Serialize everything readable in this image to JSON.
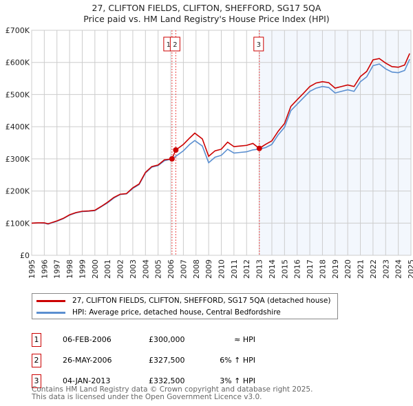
{
  "chart_data": {
    "type": "line",
    "title": "27, CLIFTON FIELDS, CLIFTON, SHEFFORD, SG17 5QA",
    "subtitle": "Price paid vs. HM Land Registry's House Price Index (HPI)",
    "xlim": [
      1995,
      2025
    ],
    "ylim": [
      0,
      700000
    ],
    "x_ticks": [
      "1995",
      "1996",
      "1997",
      "1998",
      "1999",
      "2000",
      "2001",
      "2002",
      "2003",
      "2004",
      "2005",
      "2006",
      "2007",
      "2008",
      "2009",
      "2010",
      "2011",
      "2012",
      "2013",
      "2014",
      "2015",
      "2016",
      "2017",
      "2018",
      "2019",
      "2020",
      "2021",
      "2022",
      "2023",
      "2024",
      "2025"
    ],
    "y_ticks": [
      {
        "v": 0,
        "label": "£0"
      },
      {
        "v": 100000,
        "label": "£100K"
      },
      {
        "v": 200000,
        "label": "£200K"
      },
      {
        "v": 300000,
        "label": "£300K"
      },
      {
        "v": 400000,
        "label": "£400K"
      },
      {
        "v": 500000,
        "label": "£500K"
      },
      {
        "v": 600000,
        "label": "£600K"
      },
      {
        "v": 700000,
        "label": "£700K"
      }
    ],
    "grid": true,
    "x": [
      1995,
      1995.5,
      1996,
      1996.3,
      1997,
      1997.5,
      1998,
      1998.5,
      1999,
      1999.5,
      2000,
      2000.5,
      2001,
      2001.5,
      2002,
      2002.5,
      2003,
      2003.5,
      2004,
      2004.5,
      2005,
      2005.5,
      2006.1,
      2006.4,
      2007,
      2007.5,
      2007.9,
      2008.5,
      2009,
      2009.5,
      2010,
      2010.5,
      2011,
      2011.5,
      2012,
      2012.5,
      2013,
      2013.5,
      2014,
      2014.5,
      2015,
      2015.5,
      2016,
      2016.5,
      2017,
      2017.5,
      2018,
      2018.5,
      2019,
      2019.5,
      2020,
      2020.5,
      2021,
      2021.5,
      2022,
      2022.5,
      2023,
      2023.5,
      2024,
      2024.5,
      2024.9
    ],
    "series": [
      {
        "name": "27, CLIFTON FIELDS, CLIFTON, SHEFFORD, SG17 5QA (detached house)",
        "color": "#cc0000",
        "values": [
          100000,
          101000,
          101000,
          98000,
          107000,
          115000,
          126000,
          133000,
          137000,
          138000,
          140000,
          152000,
          165000,
          180000,
          190000,
          192000,
          210000,
          222000,
          258000,
          276000,
          281000,
          297000,
          300000,
          327500,
          345000,
          365000,
          380000,
          362000,
          308000,
          325000,
          330000,
          352000,
          338000,
          340000,
          342000,
          348000,
          332500,
          345000,
          356000,
          386000,
          410000,
          463000,
          484000,
          504000,
          525000,
          536000,
          540000,
          537000,
          520000,
          525000,
          530000,
          525000,
          556000,
          572000,
          608000,
          612000,
          598000,
          587000,
          585000,
          592000,
          628000
        ]
      },
      {
        "name": "HPI: Average price, detached house, Central Bedfordshire",
        "color": "#5b8fd0",
        "values": [
          100000,
          101000,
          100000,
          97000,
          106000,
          114000,
          125000,
          132000,
          136000,
          137000,
          139000,
          151000,
          163000,
          178000,
          189000,
          191000,
          208000,
          220000,
          256000,
          274000,
          279000,
          294000,
          300000,
          308000,
          325000,
          345000,
          357000,
          340000,
          288000,
          305000,
          311000,
          330000,
          318000,
          320000,
          322000,
          328000,
          330000,
          335000,
          345000,
          375000,
          398000,
          450000,
          470000,
          490000,
          510000,
          520000,
          525000,
          522000,
          505000,
          510000,
          515000,
          510000,
          540000,
          555000,
          590000,
          595000,
          580000,
          570000,
          568000,
          575000,
          610000
        ]
      }
    ],
    "sales": [
      {
        "id": "1",
        "x": 2006.1,
        "price": 300000,
        "date": "06-FEB-2006",
        "price_label": "£300,000",
        "hpi": "≈ HPI"
      },
      {
        "id": "2",
        "x": 2006.4,
        "price": 327500,
        "date": "26-MAY-2006",
        "price_label": "£327,500",
        "hpi": "6% ↑ HPI"
      },
      {
        "id": "3",
        "x": 2013.01,
        "price": 332500,
        "date": "04-JAN-2013",
        "price_label": "£332,500",
        "hpi": "3% ↑ HPI"
      }
    ],
    "shade_from": 2013.01,
    "legend_placement": "below"
  },
  "footer": {
    "line1": "Contains HM Land Registry data © Crown copyright and database right 2025.",
    "line2": "This data is licensed under the Open Government Licence v3.0."
  }
}
